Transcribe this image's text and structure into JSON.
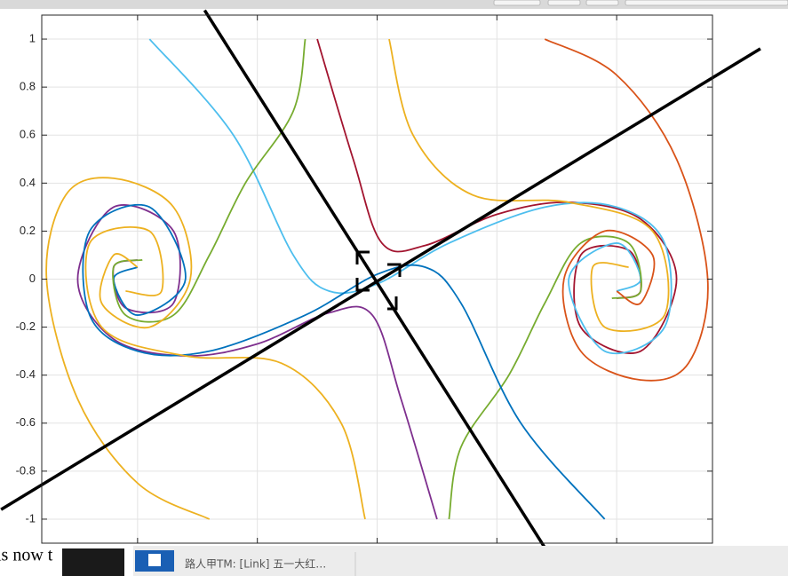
{
  "chart_data": {
    "type": "line",
    "xlim": [
      -1.4,
      1.4
    ],
    "ylim": [
      -1.1,
      1.1
    ],
    "xticks": [
      -1,
      -0.5,
      0,
      0.5,
      1
    ],
    "yticks": [
      -1,
      -0.8,
      -0.6,
      -0.4,
      -0.2,
      0,
      0.2,
      0.4,
      0.6,
      0.8,
      1
    ],
    "grid": true,
    "series": [
      {
        "color": "#A2142F",
        "x": [
          -0.25,
          -0.1,
          0.02,
          0.2,
          0.5,
          0.8,
          1.1,
          1.25,
          1.1,
          0.85,
          0.85,
          1.05,
          1.1,
          1
        ],
        "values": [
          1,
          0.5,
          0.15,
          0.14,
          0.27,
          0.32,
          0.25,
          0,
          -0.3,
          -0.2,
          0.1,
          0.12,
          -0.05,
          -0.08
        ]
      },
      {
        "color": "#4DBEEE",
        "x": [
          -0.95,
          -0.6,
          -0.35,
          -0.2,
          0,
          0.3,
          0.7,
          1,
          1.2,
          1.2,
          0.95,
          0.8,
          1,
          1.1,
          1
        ],
        "values": [
          1,
          0.6,
          0.1,
          -0.05,
          -0.02,
          0.15,
          0.3,
          0.3,
          0.15,
          -0.2,
          -0.3,
          0,
          0.15,
          0,
          -0.05
        ]
      },
      {
        "color": "#EDB120",
        "x": [
          0.05,
          0.15,
          0.4,
          0.8,
          1.15,
          1.2,
          0.95,
          0.9,
          1.05
        ],
        "values": [
          1,
          0.6,
          0.35,
          0.32,
          0.2,
          -0.15,
          -0.2,
          0.05,
          0.05
        ]
      },
      {
        "color": "#77AC30",
        "x": [
          0.3,
          0.35,
          0.55,
          0.7,
          0.85,
          1.05,
          1.1,
          0.98
        ],
        "values": [
          -1,
          -0.7,
          -0.4,
          -0.1,
          0.15,
          0.15,
          -0.05,
          -0.08
        ]
      },
      {
        "color": "#D95319",
        "x": [
          0.7,
          1,
          1.25,
          1.38,
          1.3,
          1.1,
          0.85,
          0.78,
          0.95,
          1.15,
          1.1,
          1
        ],
        "values": [
          1,
          0.85,
          0.5,
          0,
          -0.35,
          -0.42,
          -0.3,
          0,
          0.2,
          0.1,
          -0.1,
          -0.05
        ]
      },
      {
        "color": "#7E2F8E",
        "x": [
          0.25,
          0.1,
          -0.02,
          -0.2,
          -0.5,
          -0.8,
          -1.1,
          -1.25,
          -1.1,
          -0.85,
          -0.85,
          -1.05,
          -1.1,
          -1
        ],
        "values": [
          -1,
          -0.5,
          -0.15,
          -0.14,
          -0.27,
          -0.32,
          -0.25,
          0,
          0.3,
          0.2,
          -0.1,
          -0.12,
          0.05,
          0.08
        ]
      },
      {
        "color": "#0072BD",
        "x": [
          0.95,
          0.6,
          0.35,
          0.2,
          0,
          -0.3,
          -0.7,
          -1,
          -1.2,
          -1.2,
          -0.95,
          -0.8,
          -1,
          -1.1,
          -1
        ],
        "values": [
          -1,
          -0.6,
          -0.1,
          0.05,
          0.02,
          -0.15,
          -0.3,
          -0.3,
          -0.15,
          0.2,
          0.3,
          0,
          -0.15,
          0,
          0.05
        ]
      },
      {
        "color": "#EDB120",
        "x": [
          -0.05,
          -0.15,
          -0.4,
          -0.8,
          -1.15,
          -1.2,
          -0.95,
          -0.9,
          -1.05
        ],
        "values": [
          -1,
          -0.6,
          -0.35,
          -0.32,
          -0.2,
          0.15,
          0.2,
          -0.05,
          -0.05
        ]
      },
      {
        "color": "#77AC30",
        "x": [
          -0.3,
          -0.35,
          -0.55,
          -0.7,
          -0.85,
          -1.05,
          -1.1,
          -0.98
        ],
        "values": [
          1,
          0.7,
          0.4,
          0.1,
          -0.15,
          -0.15,
          0.05,
          0.08
        ]
      },
      {
        "color": "#EDB120",
        "x": [
          -0.7,
          -1,
          -1.25,
          -1.38,
          -1.3,
          -1.1,
          -0.85,
          -0.78,
          -0.95,
          -1.15,
          -1.1,
          -1
        ],
        "values": [
          -1,
          -0.85,
          -0.5,
          0,
          0.35,
          0.42,
          0.3,
          0,
          -0.2,
          -0.1,
          0.1,
          0.05
        ]
      },
      {
        "color": "#000000",
        "x": [
          -0.72,
          0.72
        ],
        "values": [
          1.12,
          -1.15
        ]
      },
      {
        "color": "#000000",
        "x": [
          -1.57,
          1.6
        ],
        "values": [
          -0.96,
          0.96
        ]
      }
    ]
  },
  "ui": {
    "partial_text": "is now t",
    "notification": "路人甲TM: [Link] 五一大红…"
  }
}
